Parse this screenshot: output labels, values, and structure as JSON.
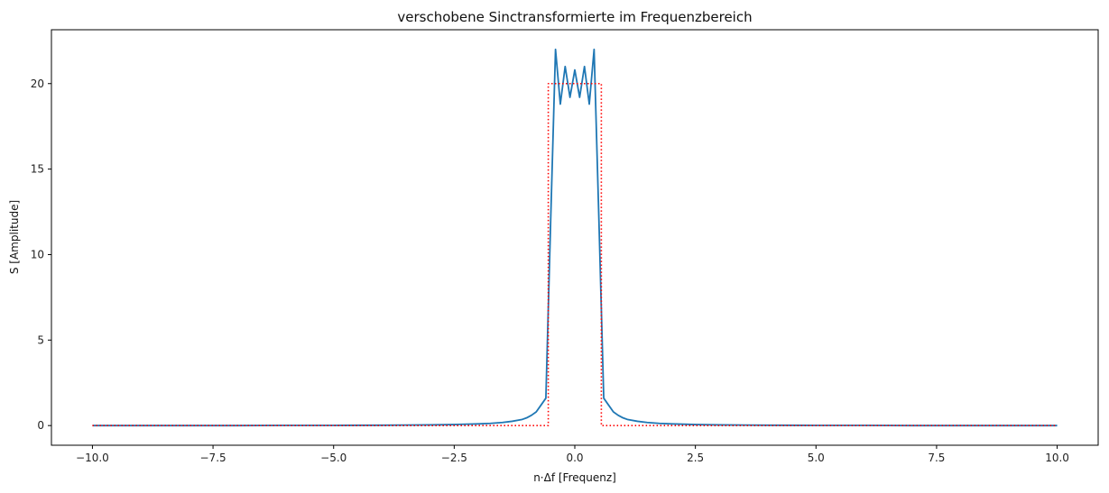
{
  "chart_data": {
    "type": "line",
    "title": "verschobene Sinctransformierte im Frequenzbereich",
    "xlabel": "n·Δf [Frequenz]",
    "ylabel": "S [Amplitude]",
    "xlim": [
      -10.85,
      10.85
    ],
    "ylim": [
      -1.15,
      23.15
    ],
    "xticks": [
      -10.0,
      -7.5,
      -5.0,
      -2.5,
      0.0,
      2.5,
      5.0,
      7.5,
      10.0
    ],
    "xtick_labels": [
      "−10.0",
      "−7.5",
      "−5.0",
      "−2.5",
      "0.0",
      "2.5",
      "5.0",
      "7.5",
      "10.0"
    ],
    "yticks": [
      0,
      5,
      10,
      15,
      20
    ],
    "ytick_labels": [
      "0",
      "5",
      "10",
      "15",
      "20"
    ],
    "grid": false,
    "legend": "none",
    "series": [
      {
        "style": "solid",
        "color": "#1f77b4",
        "x": [
          -10.0,
          -9.0,
          -8.0,
          -7.0,
          -6.0,
          -5.0,
          -4.0,
          -3.5,
          -3.0,
          -2.5,
          -2.0,
          -1.75,
          -1.5,
          -1.3,
          -1.1,
          -1.0,
          -0.9,
          -0.8,
          -0.7,
          -0.6,
          -0.5,
          -0.4,
          -0.3,
          -0.2,
          -0.1,
          0.0,
          0.1,
          0.2,
          0.3,
          0.4,
          0.5,
          0.6,
          0.7,
          0.8,
          0.9,
          1.0,
          1.1,
          1.3,
          1.5,
          1.75,
          2.0,
          2.5,
          3.0,
          3.5,
          4.0,
          5.0,
          6.0,
          7.0,
          8.0,
          9.0,
          10.0
        ],
        "y": [
          0.0,
          0.0,
          0.0,
          0.0,
          0.01,
          0.01,
          0.02,
          0.03,
          0.04,
          0.06,
          0.1,
          0.13,
          0.18,
          0.25,
          0.35,
          0.45,
          0.6,
          0.8,
          1.2,
          1.6,
          12.0,
          22.0,
          18.8,
          21.0,
          19.2,
          20.8,
          19.2,
          21.0,
          18.8,
          22.0,
          12.0,
          1.6,
          1.2,
          0.8,
          0.6,
          0.45,
          0.35,
          0.25,
          0.18,
          0.13,
          0.1,
          0.06,
          0.04,
          0.03,
          0.02,
          0.01,
          0.01,
          0.0,
          0.0,
          0.0,
          0.0
        ]
      },
      {
        "style": "dotted",
        "color": "#ff0000",
        "x": [
          -10.0,
          -0.55,
          -0.55,
          0.55,
          0.55,
          10.0
        ],
        "y": [
          0.0,
          0.0,
          20.0,
          20.0,
          0.0,
          0.0
        ]
      }
    ]
  }
}
